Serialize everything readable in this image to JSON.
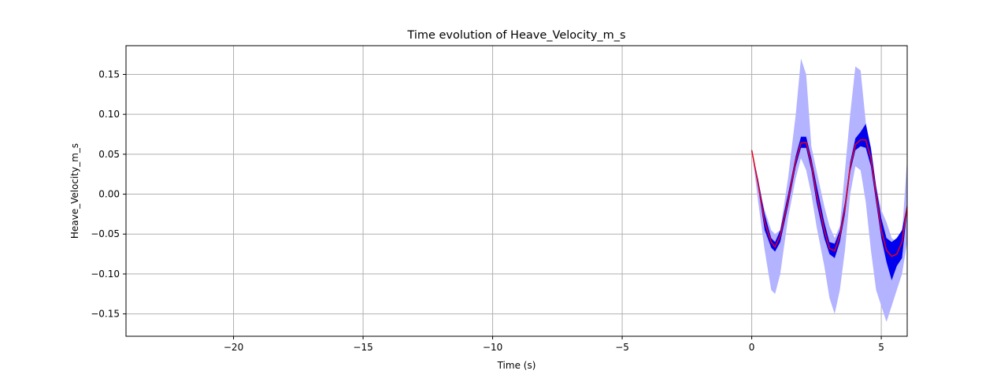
{
  "chart_data": {
    "type": "line",
    "title": "Time evolution of Heave_Velocity_m_s",
    "xlabel": "Time (s)",
    "ylabel": "Heave_Velocity_m_s",
    "xlim": [
      -24.15,
      6.0
    ],
    "ylim": [
      -0.178,
      0.186
    ],
    "grid": true,
    "xticks": [
      -20,
      -15,
      -10,
      -5,
      0,
      5
    ],
    "xtick_labels": [
      "−20",
      "−15",
      "−10",
      "−5",
      "0",
      "5"
    ],
    "yticks": [
      0.15,
      0.1,
      0.05,
      0.0,
      -0.05,
      -0.1,
      -0.15
    ],
    "ytick_labels": [
      "0.15",
      "0.10",
      "0.05",
      "0.00",
      "−0.05",
      "−0.10",
      "−0.15"
    ],
    "colors": {
      "outer_band": "#b3b3ff",
      "inner_band": "#0000ee",
      "median_line": "#e8001c",
      "grid": "#b0b0b0"
    },
    "x": [
      0.0,
      0.25,
      0.5,
      0.75,
      0.9,
      1.1,
      1.4,
      1.7,
      1.9,
      2.1,
      2.3,
      2.5,
      2.8,
      3.0,
      3.2,
      3.4,
      3.6,
      3.8,
      4.0,
      4.2,
      4.4,
      4.6,
      4.8,
      5.0,
      5.2,
      5.4,
      5.6,
      5.8,
      6.0
    ],
    "outer_upper": [
      0.055,
      0.01,
      -0.02,
      -0.045,
      -0.05,
      -0.045,
      0.02,
      0.1,
      0.17,
      0.15,
      0.06,
      0.03,
      -0.015,
      -0.04,
      -0.055,
      -0.04,
      0.03,
      0.1,
      0.16,
      0.155,
      0.09,
      0.055,
      0.01,
      -0.02,
      -0.035,
      -0.055,
      -0.06,
      -0.05,
      0.045
    ],
    "outer_lower": [
      0.055,
      -0.01,
      -0.07,
      -0.12,
      -0.125,
      -0.1,
      -0.03,
      0.02,
      0.045,
      0.03,
      0.0,
      -0.04,
      -0.09,
      -0.13,
      -0.15,
      -0.12,
      -0.07,
      0.0,
      0.035,
      0.03,
      -0.01,
      -0.07,
      -0.12,
      -0.14,
      -0.16,
      -0.14,
      -0.12,
      -0.1,
      -0.06
    ],
    "inner_upper": [
      0.056,
      0.018,
      -0.025,
      -0.055,
      -0.06,
      -0.045,
      0.0,
      0.048,
      0.072,
      0.072,
      0.045,
      0.012,
      -0.035,
      -0.06,
      -0.062,
      -0.045,
      -0.01,
      0.04,
      0.07,
      0.078,
      0.088,
      0.058,
      0.01,
      -0.03,
      -0.055,
      -0.06,
      -0.055,
      -0.045,
      -0.012
    ],
    "inner_lower": [
      0.053,
      0.008,
      -0.045,
      -0.067,
      -0.072,
      -0.06,
      -0.015,
      0.035,
      0.058,
      0.058,
      0.03,
      -0.01,
      -0.055,
      -0.075,
      -0.08,
      -0.06,
      -0.025,
      0.028,
      0.055,
      0.06,
      0.058,
      0.035,
      -0.01,
      -0.055,
      -0.085,
      -0.108,
      -0.09,
      -0.08,
      -0.02
    ],
    "median": [
      0.055,
      0.012,
      -0.035,
      -0.06,
      -0.066,
      -0.052,
      -0.008,
      0.042,
      0.064,
      0.065,
      0.038,
      0.0,
      -0.045,
      -0.068,
      -0.071,
      -0.052,
      -0.018,
      0.034,
      0.062,
      0.068,
      0.068,
      0.045,
      0.0,
      -0.045,
      -0.07,
      -0.078,
      -0.075,
      -0.06,
      -0.015
    ]
  }
}
